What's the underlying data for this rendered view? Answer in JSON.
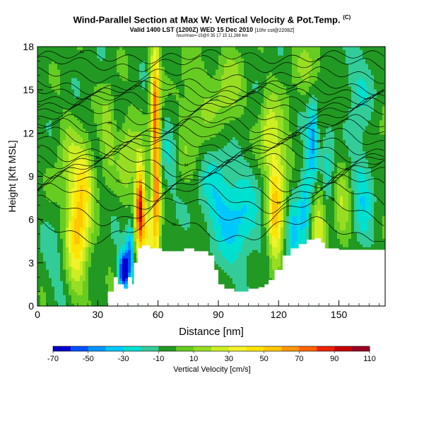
{
  "header": {
    "title": "Wind-Parallel Section at Max W: Vertical Velocity & Pot.Temp.",
    "title_mark": "(C)",
    "subtitle": "Valid 1400 LST (1200Z) WED 15 Dec 2010",
    "subtitle_small": "[10hr cst@2208Z]",
    "sub_line": "hour/max=-15@0 35 17 15 11,268 km"
  },
  "colorbar": {
    "label": "Vertical Velocity [cm/s]",
    "tick_labels": [
      "-70",
      "-50",
      "-30",
      "-10",
      "10",
      "30",
      "50",
      "70",
      "90",
      "110"
    ],
    "levels": [
      -70,
      -60,
      -50,
      -40,
      -30,
      -20,
      -10,
      0,
      10,
      20,
      30,
      40,
      50,
      60,
      70,
      80,
      90,
      100,
      110
    ],
    "colors": [
      "#0000cc",
      "#0050ff",
      "#0096ff",
      "#00c8ff",
      "#00e0d0",
      "#33cc99",
      "#229922",
      "#66cc22",
      "#99dd22",
      "#ccee22",
      "#f2f22a",
      "#ffe400",
      "#ffc800",
      "#ff9600",
      "#ff6400",
      "#ee2200",
      "#c80000",
      "#990022"
    ]
  },
  "chart_data": {
    "type": "heatmap",
    "title": "Wind-Parallel Section at Max W: Vertical Velocity & Pot.Temp.",
    "xlabel": "Distance [nm]",
    "ylabel": "Height [Kft MSL]",
    "xlim": [
      0,
      173
    ],
    "ylim": [
      0,
      18
    ],
    "x_ticks": [
      0,
      30,
      60,
      90,
      120,
      150
    ],
    "y_ticks": [
      0,
      3,
      6,
      9,
      12,
      15,
      18
    ],
    "background_value": -5,
    "max_w": 110,
    "features": [
      {
        "x": 20,
        "y": 5.5,
        "sx": 4,
        "sy": 2.8,
        "w": 60
      },
      {
        "x": 24,
        "y": 9,
        "sx": 3,
        "sy": 1.5,
        "w": 30
      },
      {
        "x": 51,
        "y": 7,
        "sx": 1.6,
        "sy": 2.2,
        "w": 100
      },
      {
        "x": 55,
        "y": 5,
        "sx": 2,
        "sy": 1.5,
        "w": 40
      },
      {
        "x": 59,
        "y": 9,
        "sx": 1.5,
        "sy": 5.5,
        "w": 70
      },
      {
        "x": 58,
        "y": 14.5,
        "sx": 1.5,
        "sy": 2.5,
        "w": 40
      },
      {
        "x": 43,
        "y": 2.5,
        "sx": 2,
        "sy": 0.9,
        "w": -70
      },
      {
        "x": 46,
        "y": 4,
        "sx": 1.5,
        "sy": 1.2,
        "w": -40
      },
      {
        "x": 35,
        "y": 12,
        "sx": 3,
        "sy": 2.2,
        "w": 20
      },
      {
        "x": 45,
        "y": 10.5,
        "sx": 3,
        "sy": 2,
        "w": 25
      },
      {
        "x": 15,
        "y": 10.5,
        "sx": 4,
        "sy": 2,
        "w": 15
      },
      {
        "x": 66,
        "y": 11,
        "sx": 3,
        "sy": 2.5,
        "w": -15
      },
      {
        "x": 78,
        "y": 13,
        "sx": 8,
        "sy": 3,
        "w": 15
      },
      {
        "x": 88,
        "y": 8,
        "sx": 6,
        "sy": 2.5,
        "w": -20
      },
      {
        "x": 100,
        "y": 6,
        "sx": 7,
        "sy": 2.5,
        "w": -25
      },
      {
        "x": 95,
        "y": 15,
        "sx": 5,
        "sy": 2,
        "w": 20
      },
      {
        "x": 118,
        "y": 6.5,
        "sx": 2.5,
        "sy": 3,
        "w": 50
      },
      {
        "x": 115,
        "y": 12,
        "sx": 3,
        "sy": 2,
        "w": 30
      },
      {
        "x": 122,
        "y": 9,
        "sx": 3,
        "sy": 3,
        "w": 20
      },
      {
        "x": 127,
        "y": 5,
        "sx": 2.5,
        "sy": 2.5,
        "w": -25
      },
      {
        "x": 137,
        "y": 11.5,
        "sx": 1.8,
        "sy": 2.2,
        "w": -40
      },
      {
        "x": 133,
        "y": 7,
        "sx": 2,
        "sy": 2,
        "w": -30
      },
      {
        "x": 140,
        "y": 6,
        "sx": 2.5,
        "sy": 2.5,
        "w": 30
      },
      {
        "x": 144,
        "y": 10,
        "sx": 2.5,
        "sy": 2,
        "w": -20
      },
      {
        "x": 152,
        "y": 7,
        "sx": 3,
        "sy": 2.5,
        "w": 20
      },
      {
        "x": 162,
        "y": 9,
        "sx": 4,
        "sy": 3,
        "w": -25
      },
      {
        "x": 165,
        "y": 12,
        "sx": 5,
        "sy": 2,
        "w": 15
      },
      {
        "x": 160,
        "y": 15,
        "sx": 6,
        "sy": 2,
        "w": -15
      },
      {
        "x": 135,
        "y": 16.5,
        "sx": 6,
        "sy": 1.5,
        "w": 15
      },
      {
        "x": 10,
        "y": 3,
        "sx": 4,
        "sy": 2,
        "w": -10
      }
    ],
    "terrain": [
      [
        0,
        0
      ],
      [
        5,
        0
      ],
      [
        10,
        0
      ],
      [
        20,
        0
      ],
      [
        30,
        0
      ],
      [
        34,
        0
      ],
      [
        35,
        1
      ],
      [
        38,
        2
      ],
      [
        40,
        1.5
      ],
      [
        43,
        1.2
      ],
      [
        45,
        2
      ],
      [
        47,
        1.5
      ],
      [
        48,
        3
      ],
      [
        50,
        4
      ],
      [
        52,
        4.2
      ],
      [
        56,
        4
      ],
      [
        62,
        3.8
      ],
      [
        68,
        3.8
      ],
      [
        73,
        4
      ],
      [
        78,
        3.8
      ],
      [
        83,
        3.8
      ],
      [
        85,
        3.5
      ],
      [
        88,
        2.5
      ],
      [
        90,
        1.5
      ],
      [
        93,
        1.2
      ],
      [
        98,
        1
      ],
      [
        103,
        1
      ],
      [
        105,
        1.2
      ],
      [
        110,
        1.3
      ],
      [
        113,
        1.5
      ],
      [
        115,
        1.8
      ],
      [
        118,
        2.5
      ],
      [
        122,
        3.5
      ],
      [
        126,
        4
      ],
      [
        130,
        4.3
      ],
      [
        134,
        4.6
      ],
      [
        138,
        4.7
      ],
      [
        141,
        4.4
      ],
      [
        143,
        4
      ],
      [
        150,
        3.9
      ],
      [
        160,
        3.9
      ],
      [
        166,
        3.9
      ],
      [
        173,
        3.9
      ]
    ],
    "theta_levels": [
      {
        "y0": 17.3,
        "amp": 0.2,
        "label": "44",
        "lx": 22
      },
      {
        "y0": 16.8,
        "amp": 0.3,
        "label": "48",
        "lx": 140
      },
      {
        "y0": 16.0,
        "amp": 0.3,
        "label": "",
        "lx": 0
      },
      {
        "y0": 15.3,
        "amp": 0.35,
        "label": "44",
        "lx": 128
      },
      {
        "y0": 15.0,
        "amp": 0.35,
        "label": "40",
        "lx": 20
      },
      {
        "y0": 14.6,
        "amp": 0.4,
        "label": "36",
        "lx": 66
      },
      {
        "y0": 14.2,
        "amp": 0.4,
        "label": "32",
        "lx": 140
      },
      {
        "y0": 13.8,
        "amp": 0.45,
        "label": "",
        "lx": 0
      },
      {
        "y0": 13.2,
        "amp": 0.5,
        "label": "32",
        "lx": 62
      },
      {
        "y0": 12.5,
        "amp": 0.5,
        "label": "28",
        "lx": 36
      },
      {
        "y0": 12.2,
        "amp": 0.55,
        "label": "24",
        "lx": 128
      },
      {
        "y0": 11.7,
        "amp": 0.55,
        "label": "",
        "lx": 0
      },
      {
        "y0": 11.2,
        "amp": 0.6,
        "label": "20",
        "lx": 140
      },
      {
        "y0": 10.8,
        "amp": 0.6,
        "label": "28",
        "lx": 30
      },
      {
        "y0": 10.4,
        "amp": 0.6,
        "label": "24",
        "lx": 74
      },
      {
        "y0": 9.8,
        "amp": 0.65,
        "label": "20",
        "lx": 95
      },
      {
        "y0": 9.3,
        "amp": 0.7,
        "label": "16",
        "lx": 148
      },
      {
        "y0": 8.8,
        "amp": 0.7,
        "label": "20",
        "lx": 40
      },
      {
        "y0": 8.2,
        "amp": 0.75,
        "label": "16",
        "lx": 120
      },
      {
        "y0": 7.5,
        "amp": 0.8,
        "label": "12",
        "lx": 30
      },
      {
        "y0": 6.6,
        "amp": 0.8,
        "label": "08",
        "lx": 147
      },
      {
        "y0": 5.3,
        "amp": 0.7,
        "label": "04",
        "lx": 68
      }
    ]
  }
}
